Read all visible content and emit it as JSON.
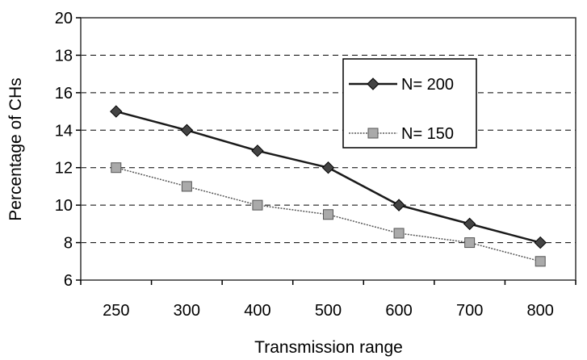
{
  "chart_data": {
    "type": "line",
    "title": "",
    "xlabel": "Transmission range",
    "ylabel": "Percentage of CHs",
    "categories": [
      "250",
      "300",
      "400",
      "500",
      "600",
      "700",
      "800"
    ],
    "ylim": [
      6,
      20
    ],
    "yticks": [
      6,
      8,
      10,
      12,
      14,
      16,
      18,
      20
    ],
    "grid": true,
    "legend_position": "top-right",
    "series": [
      {
        "name": "N= 200",
        "values": [
          15,
          14,
          12.9,
          12,
          10,
          9,
          8
        ],
        "color": "#1a1a1a",
        "marker": "diamond"
      },
      {
        "name": "N= 150",
        "values": [
          12,
          11,
          10,
          9.5,
          8.5,
          8,
          7
        ],
        "color": "#555555",
        "marker": "square"
      }
    ]
  }
}
